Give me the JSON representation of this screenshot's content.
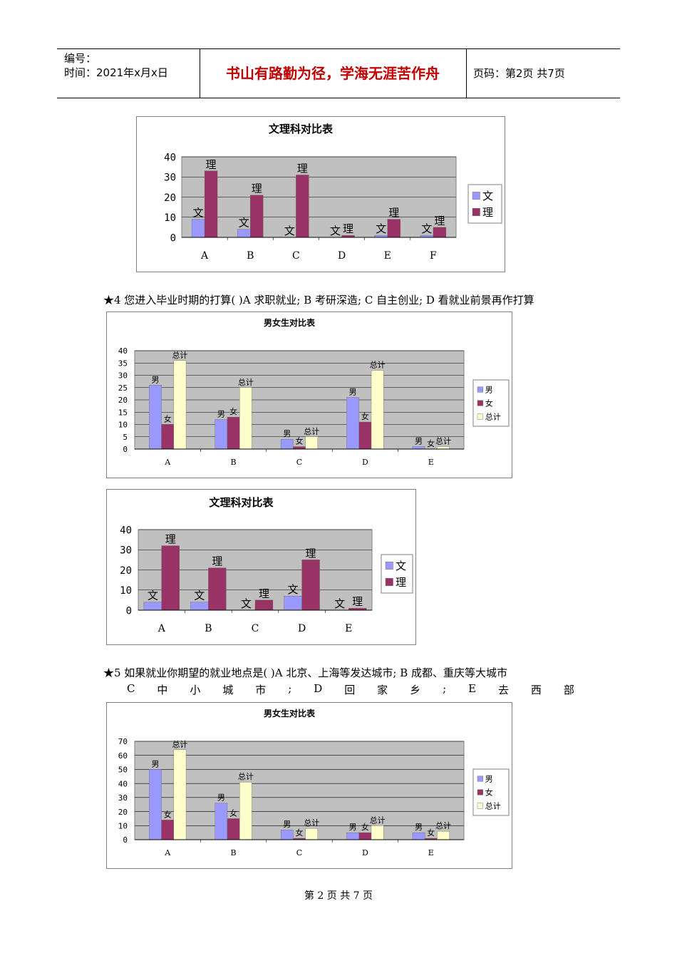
{
  "header": {
    "number_label": "编号：",
    "time_label": "时间：2021年x月x日",
    "motto": "书山有路勤为径，学海无涯苦作舟",
    "page_label": "页码：第2页  共7页"
  },
  "questions": {
    "q4": "★4 您进入毕业时期的打算( )A 求职就业; B 考研深造; C 自主创业; D 看就业前景再作打算",
    "q5_line1": "★5 如果就业你期望的就业地点是( )A 北京、上海等发达城市; B 成都、重庆等大城市",
    "q5_line2": [
      "C",
      "中",
      "小",
      "城",
      "市",
      ";",
      "D",
      "回",
      "家",
      "乡",
      ";",
      "E",
      "去",
      "西",
      "部"
    ]
  },
  "footer": {
    "page_text": "第 2 页 共 7 页"
  },
  "colors": {
    "series1": "#9999ff",
    "series2": "#993366",
    "series3": "#ffffcc",
    "plot_bg": "#c0c0c0"
  },
  "chart_data": [
    {
      "type": "bar",
      "title": "文理科对比表",
      "categories": [
        "A",
        "B",
        "C",
        "D",
        "E",
        "F"
      ],
      "series": [
        {
          "name": "文",
          "values": [
            9,
            4,
            0,
            0,
            1,
            1
          ]
        },
        {
          "name": "理",
          "values": [
            33,
            21,
            31,
            1,
            9,
            5
          ]
        }
      ],
      "ylim": [
        0,
        40
      ],
      "yticks": [
        0,
        10,
        20,
        30,
        40
      ],
      "legend": "right",
      "grid": true
    },
    {
      "type": "bar",
      "title": "男女生对比表",
      "categories": [
        "A",
        "B",
        "C",
        "D",
        "E"
      ],
      "series": [
        {
          "name": "男",
          "values": [
            26,
            12,
            4,
            21,
            1
          ]
        },
        {
          "name": "女",
          "values": [
            10,
            13,
            1,
            11,
            0
          ]
        },
        {
          "name": "总计",
          "values": [
            36,
            25,
            5,
            32,
            1
          ]
        }
      ],
      "ylim": [
        0,
        40
      ],
      "yticks": [
        0,
        5,
        10,
        15,
        20,
        25,
        30,
        35,
        40
      ],
      "legend": "right",
      "grid": true
    },
    {
      "type": "bar",
      "title": "文理科对比表",
      "categories": [
        "A",
        "B",
        "C",
        "D",
        "E"
      ],
      "series": [
        {
          "name": "文",
          "values": [
            4,
            4,
            0,
            7,
            0
          ]
        },
        {
          "name": "理",
          "values": [
            32,
            21,
            5,
            25,
            1
          ]
        }
      ],
      "ylim": [
        0,
        40
      ],
      "yticks": [
        0,
        10,
        20,
        30,
        40
      ],
      "legend": "right",
      "grid": true
    },
    {
      "type": "bar",
      "title": "男女生对比表",
      "categories": [
        "A",
        "B",
        "C",
        "D",
        "E"
      ],
      "series": [
        {
          "name": "男",
          "values": [
            50,
            26,
            7,
            5,
            5
          ]
        },
        {
          "name": "女",
          "values": [
            14,
            15,
            1,
            5,
            1
          ]
        },
        {
          "name": "总计",
          "values": [
            64,
            41,
            8,
            10,
            6
          ]
        }
      ],
      "ylim": [
        0,
        70
      ],
      "yticks": [
        0,
        10,
        20,
        30,
        40,
        50,
        60,
        70
      ],
      "legend": "right",
      "grid": true
    }
  ]
}
